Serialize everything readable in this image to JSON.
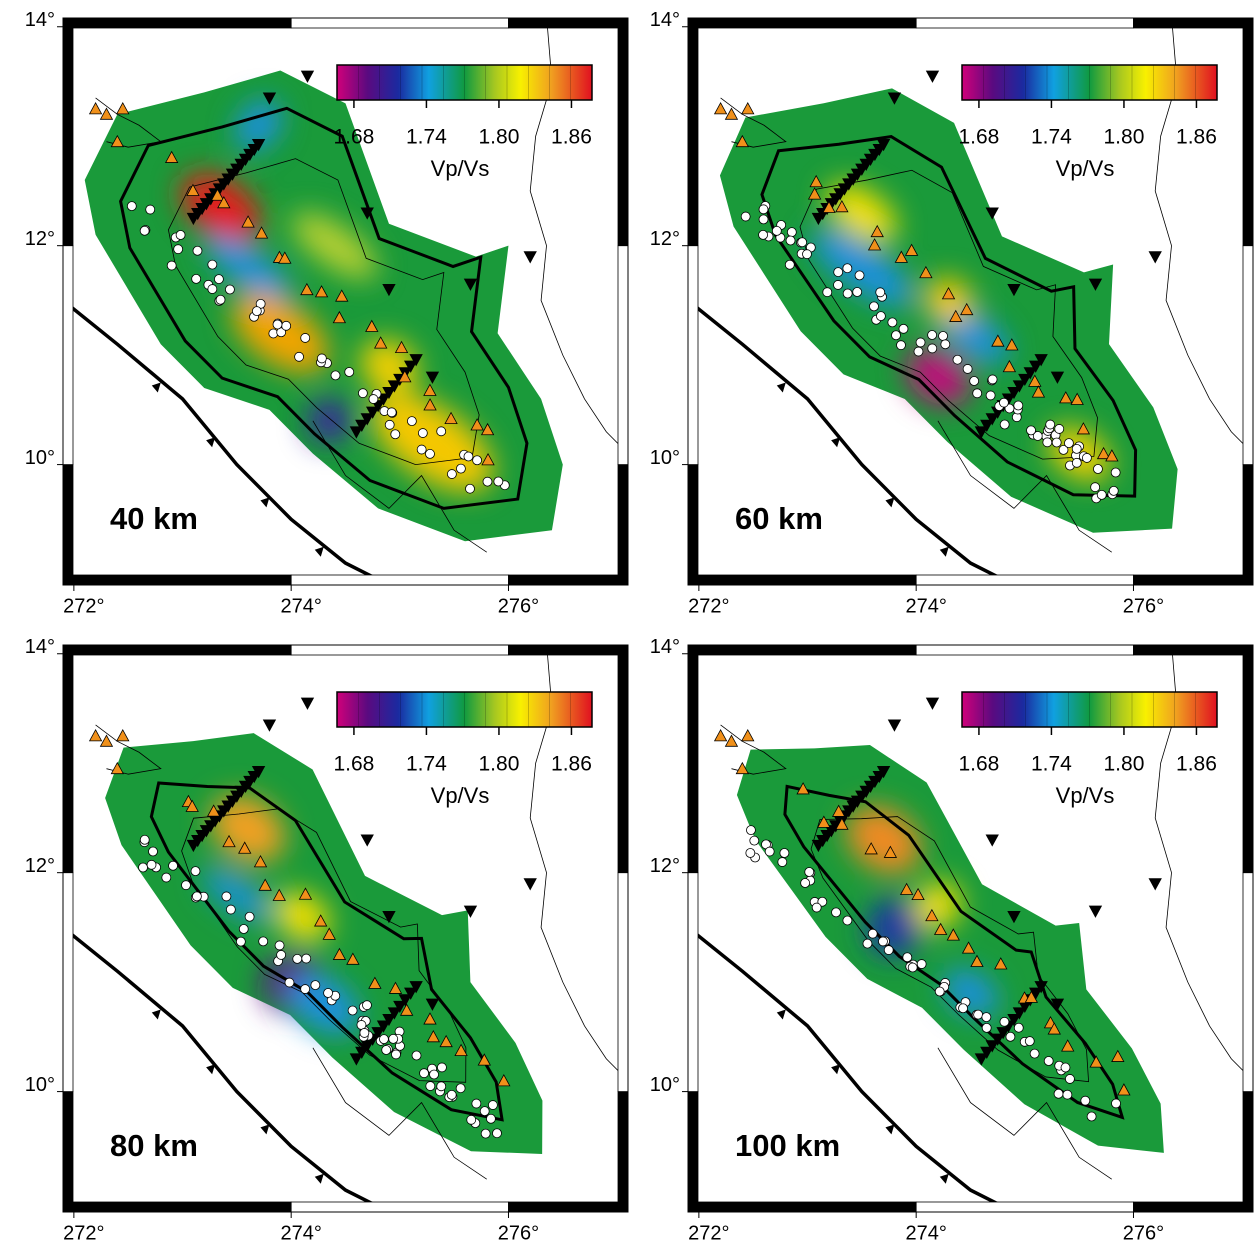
{
  "panels": [
    {
      "depth": "40 km"
    },
    {
      "depth": "60 km"
    },
    {
      "depth": "80 km"
    },
    {
      "depth": "100 km"
    }
  ],
  "colorbar": {
    "label": "Vp/Vs",
    "range": [
      1.666,
      1.877
    ],
    "ticks": [
      1.68,
      1.74,
      {
        "value": 1.8,
        "label": "1.80"
      },
      1.86
    ]
  },
  "axes": {
    "lonlim": [
      271.9,
      277.1
    ],
    "latlim": [
      8.9,
      14.08
    ],
    "lonticks": [
      {
        "value": 272,
        "label": "272°"
      },
      {
        "value": 274,
        "label": "274°"
      },
      {
        "value": 276,
        "label": "276°"
      }
    ],
    "latticks": [
      {
        "value": 10,
        "label": "10°"
      },
      {
        "value": 12,
        "label": "12°"
      },
      {
        "value": 14,
        "label": "14°"
      }
    ]
  }
}
